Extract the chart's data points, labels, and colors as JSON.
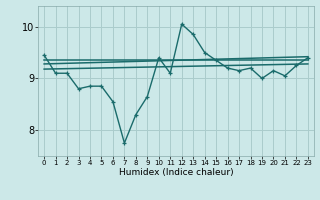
{
  "xlabel": "Humidex (Indice chaleur)",
  "background_color": "#cce8e8",
  "grid_color": "#aacccc",
  "line_color": "#1a6b6b",
  "xlim": [
    -0.5,
    23.5
  ],
  "ylim": [
    7.5,
    10.4
  ],
  "yticks": [
    8,
    9,
    10
  ],
  "xticks": [
    0,
    1,
    2,
    3,
    4,
    5,
    6,
    7,
    8,
    9,
    10,
    11,
    12,
    13,
    14,
    15,
    16,
    17,
    18,
    19,
    20,
    21,
    22,
    23
  ],
  "curve1_x": [
    0,
    1,
    2,
    3,
    4,
    5,
    6,
    7,
    8,
    9,
    10,
    11,
    12,
    13,
    14,
    15,
    16,
    17,
    18,
    19,
    20,
    21,
    22,
    23
  ],
  "curve1_y": [
    9.45,
    9.1,
    9.1,
    8.8,
    8.85,
    8.85,
    8.55,
    7.75,
    8.3,
    8.65,
    9.4,
    9.1,
    10.05,
    9.85,
    9.5,
    9.35,
    9.2,
    9.15,
    9.2,
    9.0,
    9.15,
    9.05,
    9.25,
    9.4
  ],
  "line1_x": [
    0,
    23
  ],
  "line1_y": [
    9.35,
    9.35
  ],
  "line2_x": [
    0,
    23
  ],
  "line2_y": [
    9.28,
    9.42
  ],
  "line3_x": [
    0,
    23
  ],
  "line3_y": [
    9.18,
    9.28
  ]
}
